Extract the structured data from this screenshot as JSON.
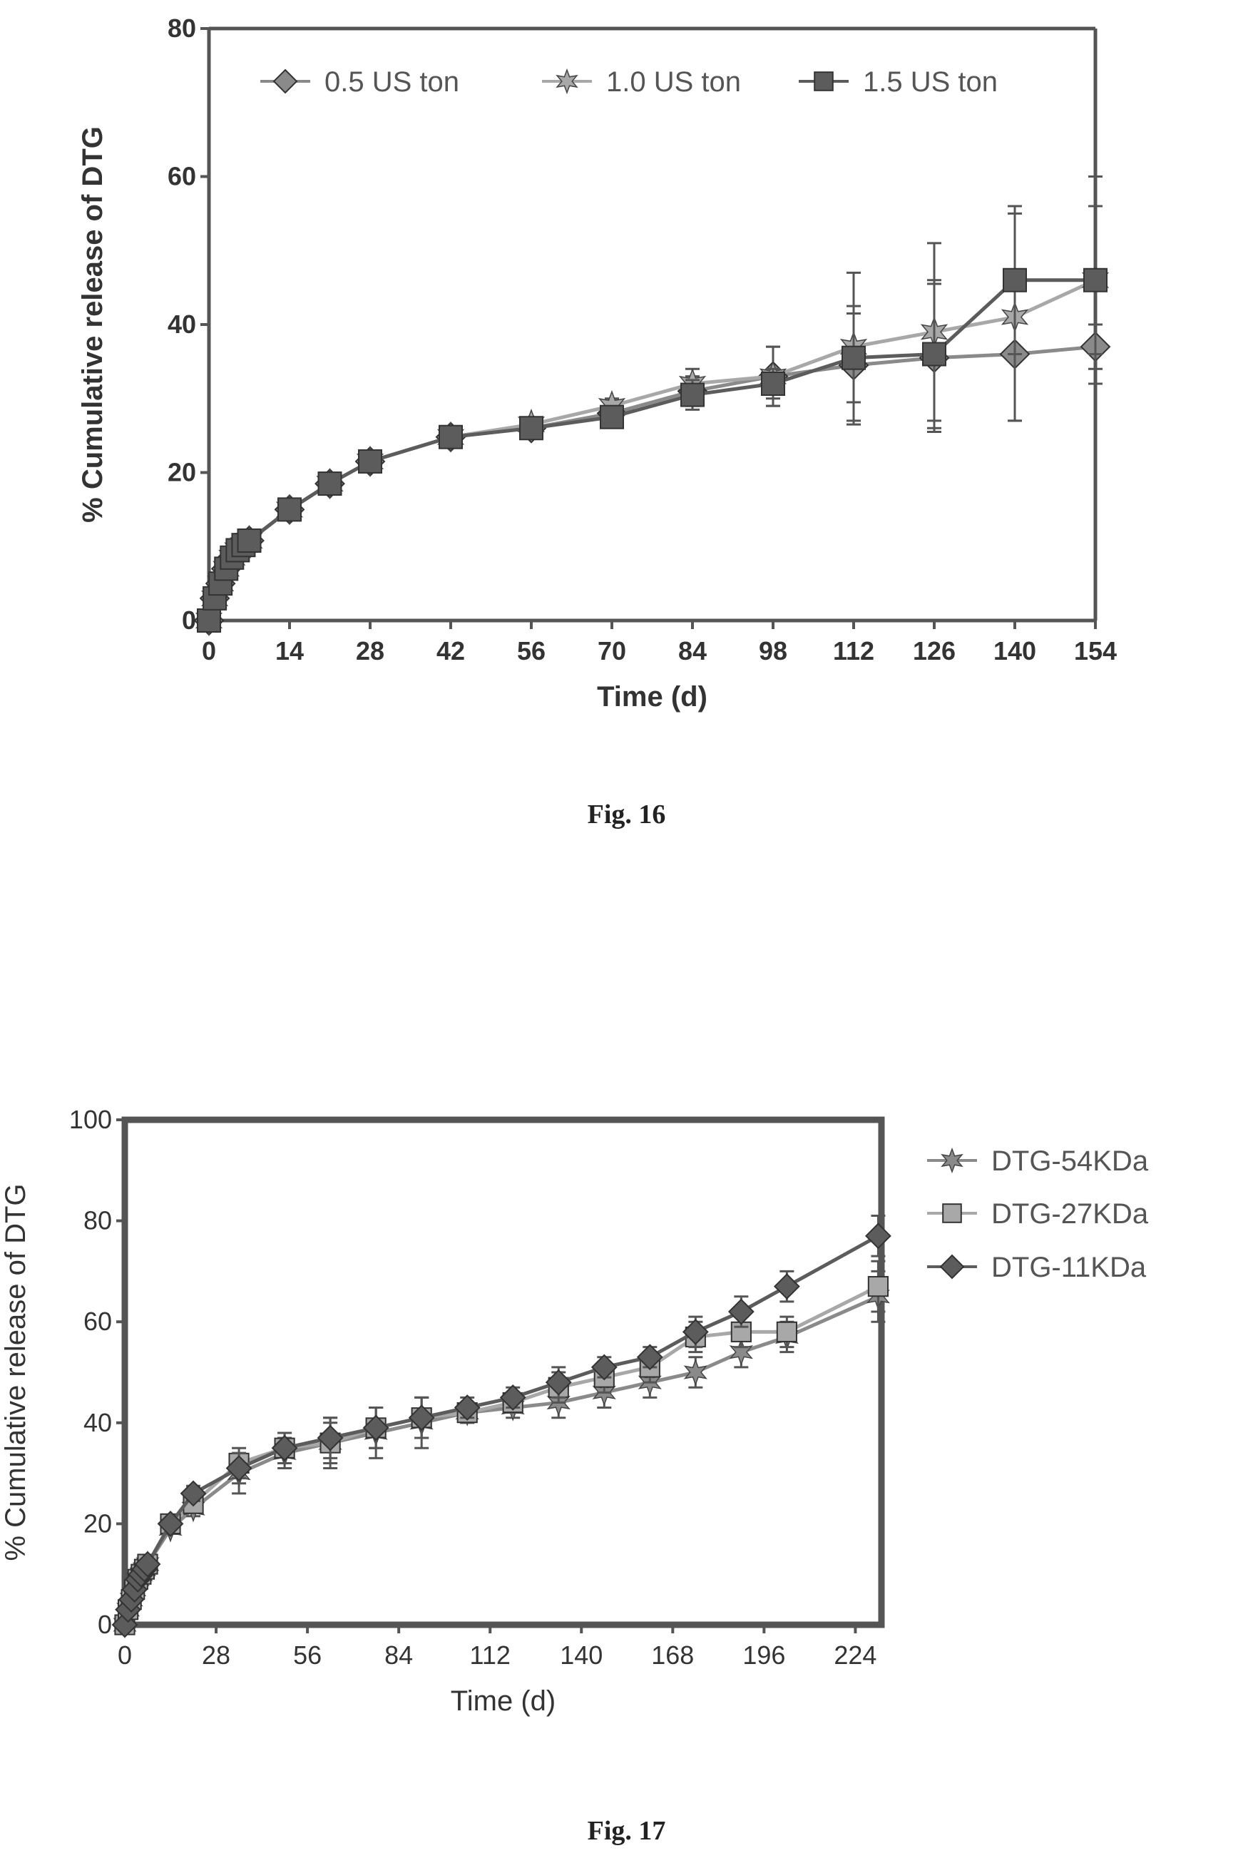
{
  "figures": [
    {
      "caption": "Fig. 16",
      "chart_data": {
        "type": "line",
        "title": "",
        "xlabel": "Time (d)",
        "ylabel": "% Cumulative release of DTG",
        "xlim": [
          0,
          154
        ],
        "ylim": [
          0,
          80
        ],
        "xticks": [
          "0",
          "14",
          "28",
          "42",
          "56",
          "70",
          "84",
          "98",
          "112",
          "126",
          "140",
          "154"
        ],
        "yticks": [
          "0",
          "20",
          "40",
          "60",
          "80"
        ],
        "legend_position": "top",
        "x": [
          0,
          1,
          2,
          3,
          4,
          5,
          6,
          7,
          14,
          21,
          28,
          42,
          56,
          70,
          84,
          98,
          112,
          126,
          140,
          154
        ],
        "series": [
          {
            "name": "0.5 US ton",
            "marker": "diamond",
            "values": [
              0,
              3,
              5,
              7,
              8.5,
              9.5,
              10.2,
              10.8,
              15,
              18.5,
              21.5,
              24.8,
              26,
              28,
              31,
              33,
              34.5,
              35.5,
              36,
              37
            ],
            "errors": [
              0,
              0,
              0,
              0,
              0,
              0,
              0,
              0,
              0,
              0,
              0,
              0.5,
              0.5,
              1,
              2,
              4,
              8,
              10,
              9,
              3
            ]
          },
          {
            "name": "1.0 US ton",
            "marker": "star",
            "values": [
              0,
              3,
              5,
              7,
              8.5,
              9.5,
              10.2,
              10.8,
              15,
              18.5,
              21.5,
              24.8,
              26.5,
              29,
              32,
              33,
              37,
              39,
              41,
              46
            ],
            "errors": [
              0,
              0,
              0,
              0,
              0,
              0,
              0,
              0,
              0,
              0,
              0,
              0.5,
              0.5,
              1,
              2,
              4,
              10,
              12,
              14,
              14
            ]
          },
          {
            "name": "1.5 US ton",
            "marker": "square",
            "values": [
              0,
              3,
              5,
              7,
              8.5,
              9.5,
              10.2,
              10.8,
              15,
              18.5,
              21.5,
              24.8,
              26,
              27.5,
              30.5,
              32,
              35.5,
              36,
              46,
              46
            ],
            "errors": [
              0,
              0,
              0,
              0,
              0,
              0,
              0,
              0,
              0,
              0,
              0,
              0.5,
              0.5,
              1,
              2,
              2,
              6,
              10,
              10,
              10
            ]
          }
        ]
      }
    },
    {
      "caption": "Fig. 17",
      "chart_data": {
        "type": "line",
        "title": "",
        "xlabel": "Time (d)",
        "ylabel": "% Cumulative release of DTG",
        "xlim": [
          0,
          232
        ],
        "ylim": [
          0,
          100
        ],
        "xticks": [
          "0",
          "28",
          "56",
          "84",
          "112",
          "140",
          "168",
          "196",
          "224"
        ],
        "yticks": [
          "0",
          "20",
          "40",
          "60",
          "80",
          "100"
        ],
        "legend_position": "right",
        "x": [
          0,
          1,
          2,
          3,
          4,
          5,
          6,
          7,
          14,
          21,
          35,
          49,
          63,
          77,
          91,
          105,
          119,
          133,
          147,
          161,
          175,
          189,
          203,
          231
        ],
        "series": [
          {
            "name": "DTG-54KDa",
            "marker": "star",
            "values": [
              0,
              3,
              5,
              7,
              9,
              10,
              11,
              12,
              19,
              23,
              30,
              34,
              36,
              38,
              40,
              42,
              43,
              44,
              46,
              48,
              50,
              54,
              57,
              65
            ],
            "errors": [
              0,
              0,
              0,
              0,
              0,
              0,
              0,
              0,
              1,
              1.5,
              4,
              3,
              5,
              5,
              5,
              2,
              2,
              3,
              3,
              3,
              3,
              3,
              3,
              5
            ]
          },
          {
            "name": "DTG-27KDa",
            "marker": "square",
            "values": [
              0,
              3,
              5,
              7,
              9,
              10,
              11,
              12,
              20,
              24,
              32,
              35,
              36,
              39,
              41,
              42,
              44,
              47,
              49,
              51,
              57,
              58,
              58,
              67
            ],
            "errors": [
              0,
              0,
              0,
              0,
              0,
              0,
              0,
              0,
              1,
              1.5,
              3,
              3,
              4,
              4,
              4,
              2,
              2,
              3,
              3,
              3,
              3,
              3,
              3,
              5
            ]
          },
          {
            "name": "DTG-11KDa",
            "marker": "diamond",
            "values": [
              0,
              3,
              5,
              7,
              9,
              10,
              11,
              12,
              20,
              26,
              31,
              35,
              37,
              39,
              41,
              43,
              45,
              48,
              51,
              53,
              58,
              62,
              67,
              77
            ],
            "errors": [
              0,
              0,
              0,
              0,
              0,
              0,
              0,
              0,
              1,
              1.5,
              3,
              3,
              4,
              4,
              4,
              2,
              2,
              3,
              2,
              2,
              3,
              3,
              3,
              4
            ]
          }
        ]
      }
    }
  ]
}
